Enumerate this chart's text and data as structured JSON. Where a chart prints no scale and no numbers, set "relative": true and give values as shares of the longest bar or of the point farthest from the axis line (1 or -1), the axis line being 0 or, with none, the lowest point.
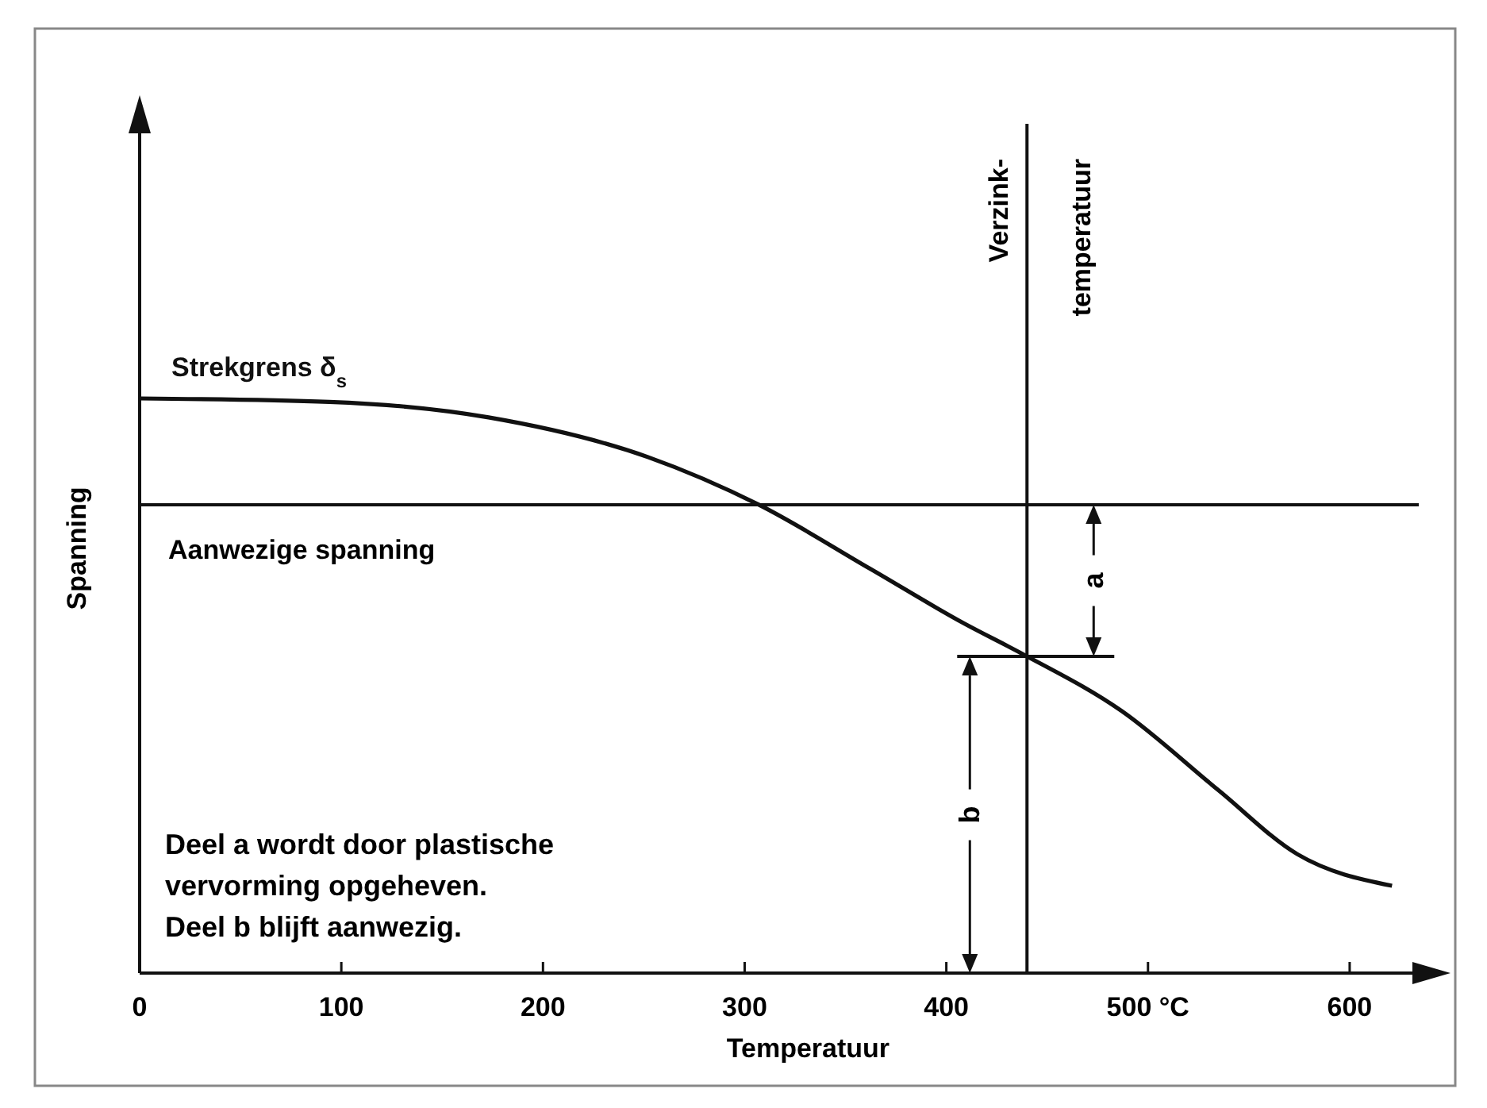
{
  "chart_data": {
    "type": "line",
    "relative": true,
    "xlabel": "Temperatuur",
    "ylabel": "Spanning",
    "xlim": [
      0,
      650
    ],
    "xticks": [
      0,
      100,
      200,
      300,
      400,
      {
        "value": 500,
        "label": "500 °C"
      },
      600
    ],
    "series": [
      {
        "name": "Strekgrens δ$_{s}$",
        "color": "#111111",
        "x": [
          0,
          94,
          173,
          252,
          307,
          362,
          409,
          438,
          487,
          535,
          574,
          621
        ],
        "values": [
          1,
          0.994,
          0.967,
          0.898,
          0.815,
          0.704,
          0.608,
          0.555,
          0.456,
          0.318,
          0.207,
          0.152
        ]
      }
    ],
    "ref_lines": [
      {
        "axis": "y",
        "value": 0.815,
        "label": "Aanwezige spanning",
        "color": "#111111"
      },
      {
        "axis": "x",
        "value": 440,
        "label": "Verzink-\ntemperatuur",
        "color": "#111111"
      }
    ],
    "annotations": [
      "a",
      "b",
      "Deel a wordt door plastische\nvervorming opgeheven.\nDeel b blijft aanwezig."
    ],
    "marker": "none",
    "line_style": "solid"
  }
}
